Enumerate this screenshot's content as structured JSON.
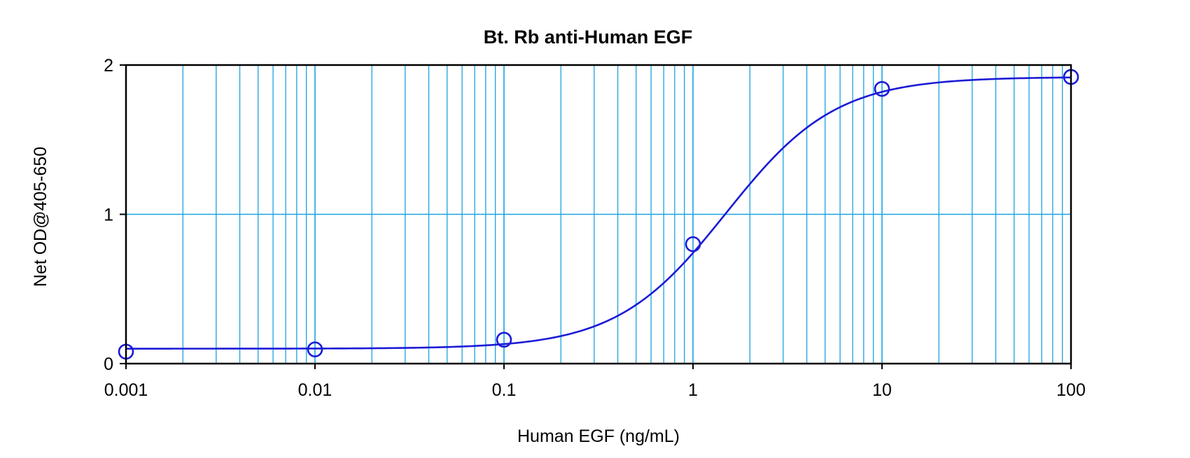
{
  "chart_data": {
    "type": "scatter",
    "title": "Bt. Rb anti-Human EGF",
    "xlabel": "Human EGF (ng/mL)",
    "ylabel": "Net OD@405-650",
    "x_scale": "log",
    "xlim": [
      0.001,
      100
    ],
    "ylim": [
      0,
      2
    ],
    "x_ticks": [
      0.001,
      0.01,
      0.1,
      1,
      10,
      100
    ],
    "x_tick_labels": [
      "0.001",
      "0.01",
      "0.1",
      "1",
      "10",
      "100"
    ],
    "y_ticks": [
      0,
      1,
      2
    ],
    "y_tick_labels": [
      "0",
      "1",
      "2"
    ],
    "grid": true,
    "legend": "none",
    "series": [
      {
        "x": [
          0.001,
          0.01,
          0.1,
          1,
          10,
          100
        ],
        "y": [
          0.08,
          0.095,
          0.16,
          0.8,
          1.84,
          1.92
        ],
        "marker": "open-circle",
        "fit": "4PL",
        "fit_params": {
          "bottom": 0.1,
          "top": 1.92,
          "ec50": 1.5,
          "hill": 1.5
        },
        "color": "#1b1bd6"
      }
    ],
    "colors": {
      "grid": "#1aa3e0",
      "series": "#1b1bd6",
      "frame": "#000000"
    }
  }
}
